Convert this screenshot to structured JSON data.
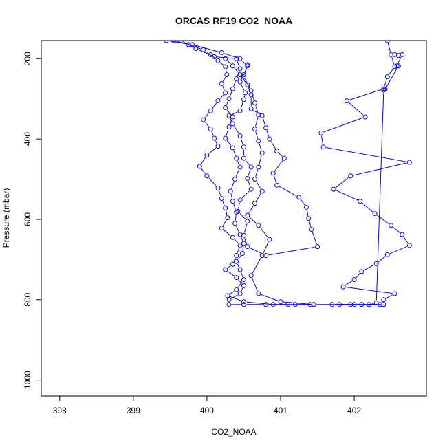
{
  "chart_data": {
    "type": "scatter",
    "title": "ORCAS RF19 CO2_NOAA",
    "xlabel": "CO2_NOAA",
    "ylabel": "Pressure (mbar)",
    "xlim": [
      397.75,
      402.98
    ],
    "ylim": [
      1040,
      155
    ],
    "y_inverted": true,
    "x_ticks": [
      398,
      399,
      400,
      401,
      402
    ],
    "y_ticks": [
      200,
      400,
      600,
      800,
      1000
    ],
    "grid": false,
    "series_color": "#0000ff",
    "series": [
      {
        "points": [
          [
            399.55,
            155
          ],
          [
            399.75,
            165
          ],
          [
            399.95,
            178
          ],
          [
            400.05,
            190
          ],
          [
            400.15,
            205
          ],
          [
            400.25,
            220
          ],
          [
            400.27,
            240
          ],
          [
            400.2,
            262
          ],
          [
            400.25,
            285
          ],
          [
            400.15,
            305
          ],
          [
            400.05,
            330
          ],
          [
            399.95,
            352
          ],
          [
            400.05,
            375
          ],
          [
            400.1,
            398
          ],
          [
            400.15,
            418
          ],
          [
            400.0,
            440
          ],
          [
            399.9,
            468
          ],
          [
            400.0,
            492
          ],
          [
            400.15,
            522
          ],
          [
            400.2,
            548
          ],
          [
            400.25,
            572
          ],
          [
            400.28,
            596
          ],
          [
            400.2,
            622
          ],
          [
            400.35,
            645
          ],
          [
            400.45,
            665
          ],
          [
            400.4,
            690
          ],
          [
            400.35,
            712
          ],
          [
            400.25,
            725
          ],
          [
            400.4,
            745
          ],
          [
            400.5,
            765
          ],
          [
            400.45,
            785
          ],
          [
            400.3,
            800
          ],
          [
            400.3,
            812
          ],
          [
            400.5,
            812
          ],
          [
            400.8,
            812
          ],
          [
            401.1,
            812
          ],
          [
            401.4,
            812
          ]
        ]
      },
      {
        "points": [
          [
            399.65,
            155
          ],
          [
            399.85,
            175
          ],
          [
            400.1,
            195
          ],
          [
            400.4,
            200
          ],
          [
            400.45,
            225
          ],
          [
            400.4,
            250
          ],
          [
            400.35,
            275
          ],
          [
            400.3,
            300
          ],
          [
            400.25,
            322
          ],
          [
            400.35,
            345
          ],
          [
            400.3,
            370
          ],
          [
            400.25,
            398
          ],
          [
            400.35,
            422
          ],
          [
            400.4,
            448
          ],
          [
            400.45,
            470
          ],
          [
            400.38,
            500
          ],
          [
            400.32,
            530
          ],
          [
            400.35,
            555
          ],
          [
            400.4,
            582
          ],
          [
            400.38,
            610
          ],
          [
            400.45,
            638
          ],
          [
            400.5,
            660
          ],
          [
            400.48,
            685
          ],
          [
            400.4,
            705
          ],
          [
            400.45,
            725
          ],
          [
            400.5,
            750
          ],
          [
            400.4,
            775
          ],
          [
            400.28,
            790
          ],
          [
            400.5,
            805
          ],
          [
            400.9,
            812
          ],
          [
            401.2,
            812
          ],
          [
            401.45,
            812
          ]
        ]
      },
      {
        "points": [
          [
            399.45,
            155
          ],
          [
            399.8,
            165
          ],
          [
            400.2,
            185
          ],
          [
            400.45,
            200
          ],
          [
            400.55,
            218
          ],
          [
            400.5,
            240
          ],
          [
            400.45,
            258
          ],
          [
            400.52,
            285
          ],
          [
            400.5,
            302
          ],
          [
            400.45,
            330
          ],
          [
            400.3,
            342
          ],
          [
            400.35,
            362
          ],
          [
            400.45,
            392
          ],
          [
            400.5,
            420
          ],
          [
            400.5,
            448
          ],
          [
            400.6,
            470
          ],
          [
            400.55,
            498
          ],
          [
            400.6,
            525
          ],
          [
            400.45,
            552
          ],
          [
            400.42,
            580
          ],
          [
            400.55,
            605
          ],
          [
            400.5,
            640
          ],
          [
            400.55,
            668
          ],
          [
            400.8,
            690
          ],
          [
            401.5,
            668
          ],
          [
            401.42,
            625
          ],
          [
            401.38,
            598
          ],
          [
            401.35,
            570
          ],
          [
            401.25,
            545
          ],
          [
            400.95,
            515
          ],
          [
            400.9,
            485
          ],
          [
            401.05,
            448
          ],
          [
            400.95,
            430
          ],
          [
            400.85,
            400
          ],
          [
            400.8,
            372
          ],
          [
            400.75,
            342
          ],
          [
            400.6,
            325
          ],
          [
            400.6,
            290
          ],
          [
            400.55,
            265
          ],
          [
            400.45,
            240
          ],
          [
            400.35,
            218
          ],
          [
            400.25,
            200
          ]
        ]
      },
      {
        "points": [
          [
            400.55,
            215
          ],
          [
            400.5,
            245
          ],
          [
            400.6,
            280
          ],
          [
            400.65,
            310
          ],
          [
            400.7,
            340
          ],
          [
            400.65,
            375
          ],
          [
            400.7,
            405
          ],
          [
            400.75,
            435
          ],
          [
            400.7,
            470
          ],
          [
            400.65,
            500
          ],
          [
            400.75,
            530
          ],
          [
            400.65,
            560
          ],
          [
            400.55,
            590
          ],
          [
            400.7,
            615
          ],
          [
            400.85,
            650
          ],
          [
            400.75,
            690
          ],
          [
            400.6,
            740
          ],
          [
            400.7,
            785
          ],
          [
            401.0,
            805
          ],
          [
            401.45,
            812
          ],
          [
            401.8,
            812
          ],
          [
            402.1,
            812
          ],
          [
            402.4,
            812
          ]
        ]
      },
      {
        "points": [
          [
            402.45,
            155
          ],
          [
            402.5,
            190
          ],
          [
            402.55,
            220
          ],
          [
            402.45,
            245
          ],
          [
            402.4,
            275
          ],
          [
            401.9,
            305
          ],
          [
            402.15,
            345
          ],
          [
            401.55,
            385
          ],
          [
            401.58,
            420
          ],
          [
            402.75,
            458
          ],
          [
            401.95,
            492
          ],
          [
            401.72,
            525
          ],
          [
            402.08,
            555
          ],
          [
            402.28,
            586
          ],
          [
            402.5,
            615
          ],
          [
            402.65,
            638
          ],
          [
            402.75,
            665
          ],
          [
            402.45,
            688
          ],
          [
            402.3,
            710
          ],
          [
            402.1,
            730
          ],
          [
            402.0,
            750
          ],
          [
            401.85,
            768
          ],
          [
            402.55,
            785
          ],
          [
            402.4,
            800
          ],
          [
            402.35,
            812
          ],
          [
            402.1,
            812
          ],
          [
            401.95,
            812
          ]
        ]
      },
      {
        "points": [
          [
            402.55,
            190
          ],
          [
            402.6,
            192
          ],
          [
            402.65,
            190
          ],
          [
            402.58,
            218
          ],
          [
            402.6,
            218
          ],
          [
            402.42,
            276
          ],
          [
            402.4,
            278
          ],
          [
            402.3,
            808
          ],
          [
            402.2,
            812
          ],
          [
            402.0,
            812
          ],
          [
            401.7,
            812
          ],
          [
            402.4,
            812
          ]
        ]
      }
    ]
  }
}
